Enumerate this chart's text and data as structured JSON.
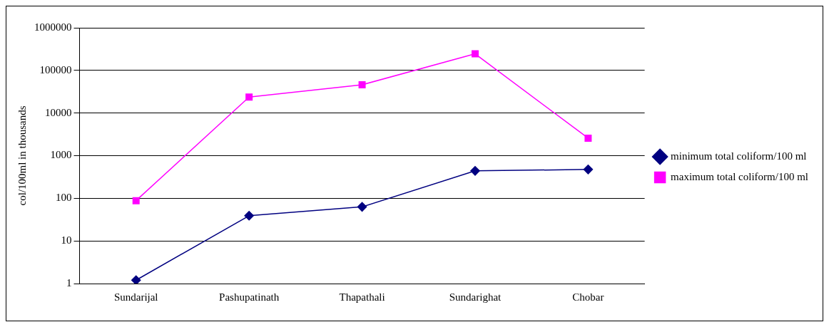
{
  "chart_data": {
    "type": "line",
    "ylabel": "col/100ml in thousands",
    "log": true,
    "categories": [
      "Sundarijal",
      "Pashupatinath",
      "Thapathali",
      "Sundarighat",
      "Chobar"
    ],
    "series": [
      {
        "name": "minimum total coliform/100 ml",
        "color": "#000080",
        "marker": "diamond",
        "values": [
          1.2,
          39,
          63,
          440,
          475
        ]
      },
      {
        "name": "maximum total coliform/100 ml",
        "color": "#ff00ff",
        "marker": "square",
        "values": [
          88,
          23700,
          46000,
          245000,
          2570
        ]
      }
    ],
    "ylim": [
      1,
      1000000
    ],
    "yticks": [
      1,
      10,
      100,
      1000,
      10000,
      100000,
      1000000
    ],
    "grid": "y",
    "legend": "right",
    "line_style": "solid"
  }
}
